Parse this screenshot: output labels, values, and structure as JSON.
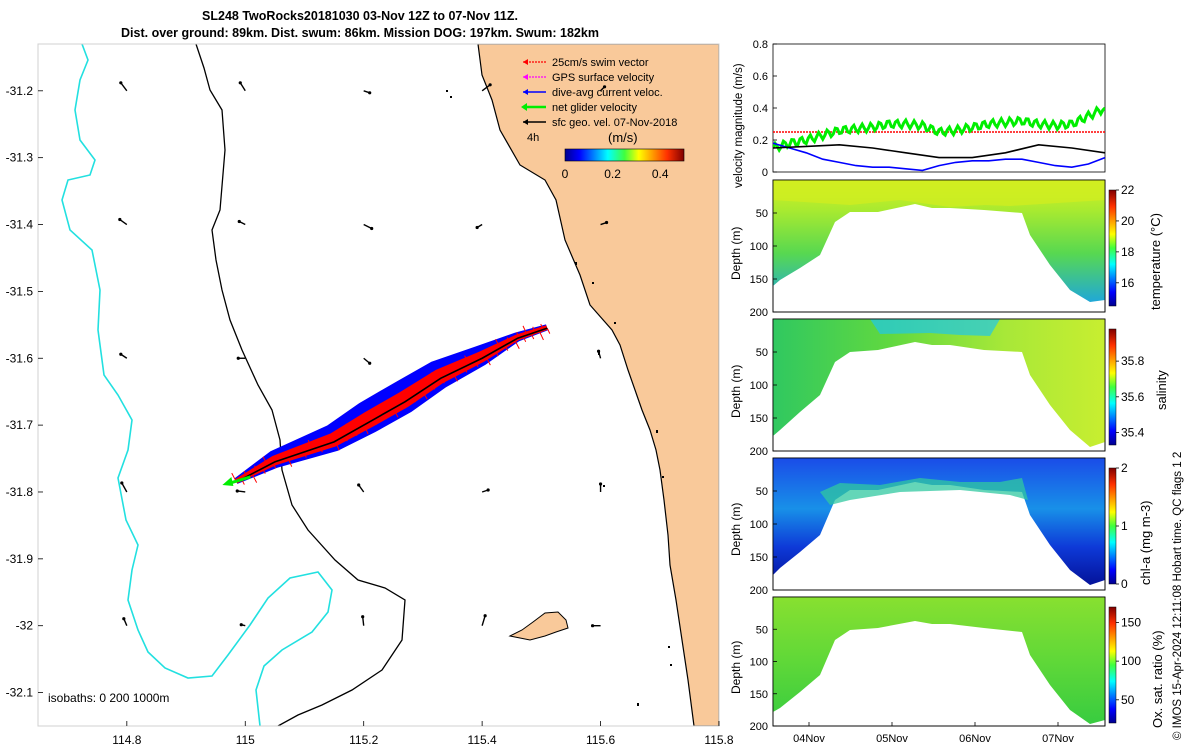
{
  "title_line1": "SL248 TwoRocks20181030 03-Nov 12Z to 07-Nov 11Z.",
  "title_line2": "Dist. over ground: 89km. Dist. swum: 86km. Mission DOG: 197km. Swum: 182km",
  "credit": "© IMOS 15-Apr-2024 12:11:08 Hobart time. QC flags 1  2",
  "colors": {
    "land": "#f9c99a",
    "isobath0": "#000000",
    "isobath200": "#000000",
    "isobath1000": "#22e0e0",
    "swim": "#ff0000",
    "gps": "#ff00ff",
    "current": "#0000ff",
    "net": "#00ee00",
    "geo": "#000000"
  },
  "chart_data": [
    {
      "type": "map",
      "name": "track map",
      "xlim": [
        114.65,
        115.8
      ],
      "ylim": [
        -32.15,
        -31.13
      ],
      "xticks": [
        "114.8",
        "115",
        "115.2",
        "115.4",
        "115.6",
        "115.8"
      ],
      "yticks": [
        "-31.2",
        "-31.3",
        "-31.4",
        "-31.5",
        "-31.6",
        "-31.7",
        "-31.8",
        "-31.9",
        "-32",
        "-32.1"
      ],
      "legend": {
        "placement": "top-right",
        "entries": [
          "25cm/s swim vector",
          "GPS surface velocity",
          "dive-avg current veloc.",
          "net glider velocity",
          "sfc geo. vel. 07-Nov-2018"
        ],
        "interval_label": "4h"
      },
      "colorbar": {
        "label": "(m/s)",
        "ticks": [
          "0",
          "0.2",
          "0.4"
        ],
        "range": [
          0,
          0.5
        ]
      },
      "isobaths_label": "isobaths: 0   200  1000m",
      "track": [
        [
          114.985,
          -31.785
        ],
        [
          115.05,
          -31.755
        ],
        [
          115.15,
          -31.725
        ],
        [
          115.21,
          -31.695
        ],
        [
          115.27,
          -31.665
        ],
        [
          115.33,
          -31.63
        ],
        [
          115.4,
          -31.6
        ],
        [
          115.46,
          -31.57
        ],
        [
          115.51,
          -31.555
        ]
      ]
    },
    {
      "type": "line",
      "name": "velocity panel",
      "ylabel": "velocity magnitude (m/s)",
      "ylim": [
        0,
        0.8
      ],
      "yticks": [
        "0",
        "0.2",
        "0.4",
        "0.6",
        "0.8"
      ],
      "xlim": [
        0,
        4
      ],
      "series": [
        {
          "color": "#ff0000",
          "x": [
            0,
            0.5,
            1,
            1.5,
            2,
            2.5,
            3,
            3.5,
            4
          ],
          "values": [
            0.25,
            0.25,
            0.25,
            0.25,
            0.25,
            0.25,
            0.25,
            0.25,
            0.25
          ]
        },
        {
          "color": "#00ee00",
          "x": [
            0,
            0.2,
            0.4,
            0.6,
            0.8,
            1.0,
            1.2,
            1.4,
            1.6,
            1.8,
            2.0,
            2.2,
            2.4,
            2.6,
            2.8,
            3.0,
            3.2,
            3.4,
            3.6,
            3.8,
            4.0
          ],
          "values": [
            0.15,
            0.18,
            0.2,
            0.23,
            0.26,
            0.27,
            0.28,
            0.3,
            0.3,
            0.29,
            0.25,
            0.26,
            0.28,
            0.3,
            0.31,
            0.32,
            0.3,
            0.29,
            0.3,
            0.35,
            0.4
          ]
        },
        {
          "color": "#0000ff",
          "x": [
            0,
            0.2,
            0.4,
            0.6,
            0.8,
            1.0,
            1.2,
            1.4,
            1.6,
            1.8,
            2.0,
            2.2,
            2.4,
            2.6,
            2.8,
            3.0,
            3.2,
            3.4,
            3.6,
            3.8,
            4.0
          ],
          "values": [
            0.18,
            0.15,
            0.12,
            0.08,
            0.06,
            0.04,
            0.03,
            0.03,
            0.02,
            0.01,
            0.04,
            0.06,
            0.07,
            0.07,
            0.08,
            0.08,
            0.06,
            0.04,
            0.03,
            0.05,
            0.09
          ]
        },
        {
          "color": "#000000",
          "x": [
            0,
            0.4,
            0.8,
            1.2,
            1.6,
            2.0,
            2.4,
            2.8,
            3.2,
            3.6,
            4.0
          ],
          "values": [
            0.15,
            0.16,
            0.17,
            0.15,
            0.12,
            0.09,
            0.09,
            0.12,
            0.17,
            0.15,
            0.12
          ]
        }
      ]
    },
    {
      "type": "heatmap",
      "name": "temperature",
      "ylabel": "Depth (m)",
      "yticks": [
        "50",
        "100",
        "150",
        "200"
      ],
      "ylim": [
        0,
        200
      ],
      "colorbar": {
        "label": "temperature (°C)",
        "ticks": [
          "16",
          "18",
          "20",
          "22"
        ],
        "range": [
          14.5,
          22
        ]
      }
    },
    {
      "type": "heatmap",
      "name": "salinity",
      "ylabel": "Depth (m)",
      "yticks": [
        "50",
        "100",
        "150",
        "200"
      ],
      "ylim": [
        0,
        200
      ],
      "colorbar": {
        "label": "salinity",
        "ticks": [
          "35.4",
          "35.6",
          "35.8"
        ],
        "range": [
          35.33,
          35.98
        ]
      }
    },
    {
      "type": "heatmap",
      "name": "chlorophyll",
      "ylabel": "Depth (m)",
      "yticks": [
        "50",
        "100",
        "150",
        "200"
      ],
      "ylim": [
        0,
        200
      ],
      "colorbar": {
        "label": "chl-a (mg m-3)",
        "ticks": [
          "0",
          "1",
          "2"
        ],
        "range": [
          0,
          2
        ]
      }
    },
    {
      "type": "heatmap",
      "name": "oxygen",
      "ylabel": "Depth (m)",
      "yticks": [
        "50",
        "100",
        "150",
        "200"
      ],
      "ylim": [
        0,
        200
      ],
      "xticks": [
        "04Nov",
        "05Nov",
        "06Nov",
        "07Nov"
      ],
      "colorbar": {
        "label": "Ox. sat. ratio (%)",
        "ticks": [
          "50",
          "100",
          "150"
        ],
        "range": [
          20,
          170
        ]
      }
    }
  ]
}
